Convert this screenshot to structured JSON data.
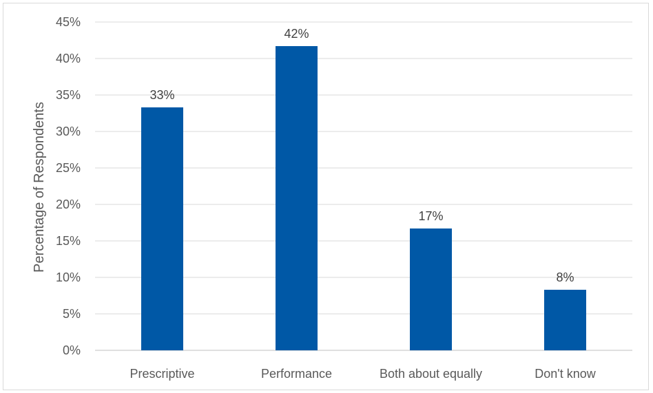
{
  "chart_data": {
    "type": "bar",
    "categories": [
      "Prescriptive",
      "Performance",
      "Both about equally",
      "Don't know"
    ],
    "values": [
      33.3,
      41.7,
      16.7,
      8.3
    ],
    "data_labels": [
      "33%",
      "42%",
      "17%",
      "8%"
    ],
    "title": "",
    "xlabel": "",
    "ylabel": "Percentage of Respondents",
    "ylim": [
      0,
      45
    ],
    "yticks": [
      0,
      5,
      10,
      15,
      20,
      25,
      30,
      35,
      40,
      45
    ],
    "ytick_labels": [
      "0%",
      "5%",
      "10%",
      "15%",
      "20%",
      "25%",
      "30%",
      "35%",
      "40%",
      "45%"
    ],
    "grid": "horizontal",
    "legend": "none",
    "bar_color": "#0058a6",
    "grid_color": "#d9d9d9",
    "axis_color": "#bfbfbf"
  }
}
